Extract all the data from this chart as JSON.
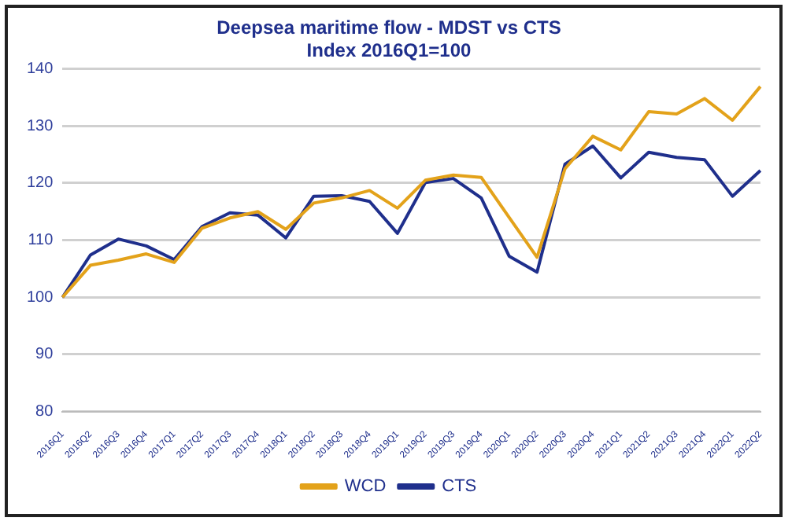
{
  "chart_data": {
    "type": "line",
    "title": "Deepsea maritime flow - MDST vs CTS",
    "subtitle": "Index 2016Q1=100",
    "categories": [
      "2016Q1",
      "2016Q2",
      "2016Q3",
      "2016Q4",
      "2017Q1",
      "2017Q2",
      "2017Q3",
      "2017Q4",
      "2018Q1",
      "2018Q2",
      "2018Q3",
      "2018Q4",
      "2019Q1",
      "2019Q2",
      "2019Q3",
      "2019Q4",
      "2020Q1",
      "2020Q2",
      "2020Q3",
      "2020Q4",
      "2021Q1",
      "2021Q2",
      "2021Q3",
      "2021Q4",
      "2022Q1",
      "2022Q2"
    ],
    "series": [
      {
        "name": "WCD",
        "color": "#e3a21a",
        "values": [
          100,
          105.6,
          106.5,
          107.6,
          106.1,
          112.1,
          113.9,
          115,
          111.9,
          116.5,
          117.4,
          118.7,
          115.6,
          120.5,
          121.4,
          121,
          114,
          107,
          122.5,
          128.2,
          125.8,
          132.5,
          132.1,
          134.8,
          131,
          136.9
        ]
      },
      {
        "name": "CTS",
        "color": "#1f2f8c",
        "values": [
          100,
          107.4,
          110.2,
          109,
          106.6,
          112.4,
          114.8,
          114.4,
          110.4,
          117.7,
          117.8,
          116.8,
          111.2,
          120.1,
          120.8,
          117.4,
          107.2,
          104.4,
          123.3,
          126.5,
          120.9,
          125.4,
          124.5,
          124.1,
          117.7,
          122.2
        ]
      }
    ],
    "ylim": [
      80,
      140
    ],
    "yticks": [
      80,
      90,
      100,
      110,
      120,
      130,
      140
    ],
    "grid": "y",
    "legend": "bottom",
    "marker": "none",
    "line_style": "solid"
  }
}
